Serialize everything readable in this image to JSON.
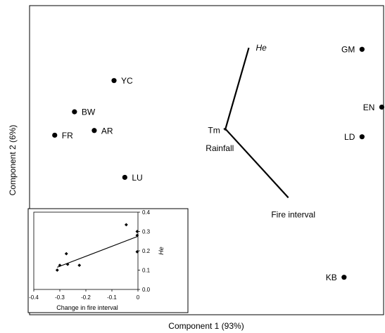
{
  "chart_data": [
    {
      "type": "biplot",
      "xlabel": "Component 1 (93%)",
      "ylabel": "Component 2 (6%)",
      "points": [
        {
          "label": "GM",
          "x": 0.88,
          "y": 0.7
        },
        {
          "label": "EN",
          "x": 0.99,
          "y": 0.33
        },
        {
          "label": "LD",
          "x": 0.88,
          "y": 0.14
        },
        {
          "label": "KB",
          "x": 0.78,
          "y": -0.76
        },
        {
          "label": "YC",
          "x": -0.5,
          "y": 0.5
        },
        {
          "label": "BW",
          "x": -0.72,
          "y": 0.3
        },
        {
          "label": "FR",
          "x": -0.83,
          "y": 0.15
        },
        {
          "label": "AR",
          "x": -0.61,
          "y": 0.18
        },
        {
          "label": "LU",
          "x": -0.44,
          "y": -0.12
        }
      ],
      "vectors": [
        {
          "label": "He",
          "x": 0.25,
          "y": 0.71
        },
        {
          "label": "Tm",
          "x": 0.11,
          "y": 0.19
        },
        {
          "label": "Rainfall",
          "x": 0.12,
          "y": 0.18
        },
        {
          "label": "Fire interval",
          "x": 0.47,
          "y": -0.25
        }
      ],
      "origin": {
        "x": 0.12,
        "y": 0.19
      },
      "xlim": [
        -0.97,
        1.0
      ],
      "ylim": [
        -1.0,
        0.98
      ],
      "grid": false,
      "legend": "none"
    },
    {
      "type": "scatter",
      "xlabel": "Change in fire interval",
      "ylabel": "He",
      "xlim": [
        -0.4,
        0.0
      ],
      "ylim": [
        0.0,
        0.4
      ],
      "x_ticks": [
        "-0.4",
        "-0.3",
        "-0.2",
        "-0.1",
        "0"
      ],
      "y_ticks": [
        "0.0",
        "0.1",
        "0.2",
        "0.3",
        "0.4"
      ],
      "points": [
        {
          "x": -0.31,
          "y": 0.1
        },
        {
          "x": -0.3,
          "y": 0.125
        },
        {
          "x": -0.275,
          "y": 0.185
        },
        {
          "x": -0.27,
          "y": 0.13
        },
        {
          "x": -0.225,
          "y": 0.125
        },
        {
          "x": -0.045,
          "y": 0.335
        },
        {
          "x": -0.003,
          "y": 0.3
        },
        {
          "x": -0.003,
          "y": 0.195
        },
        {
          "x": -0.003,
          "y": 0.28
        }
      ],
      "trendline": {
        "x": [
          -0.31,
          0.0
        ],
        "y": [
          0.115,
          0.275
        ]
      },
      "grid": false,
      "legend": "none"
    }
  ]
}
